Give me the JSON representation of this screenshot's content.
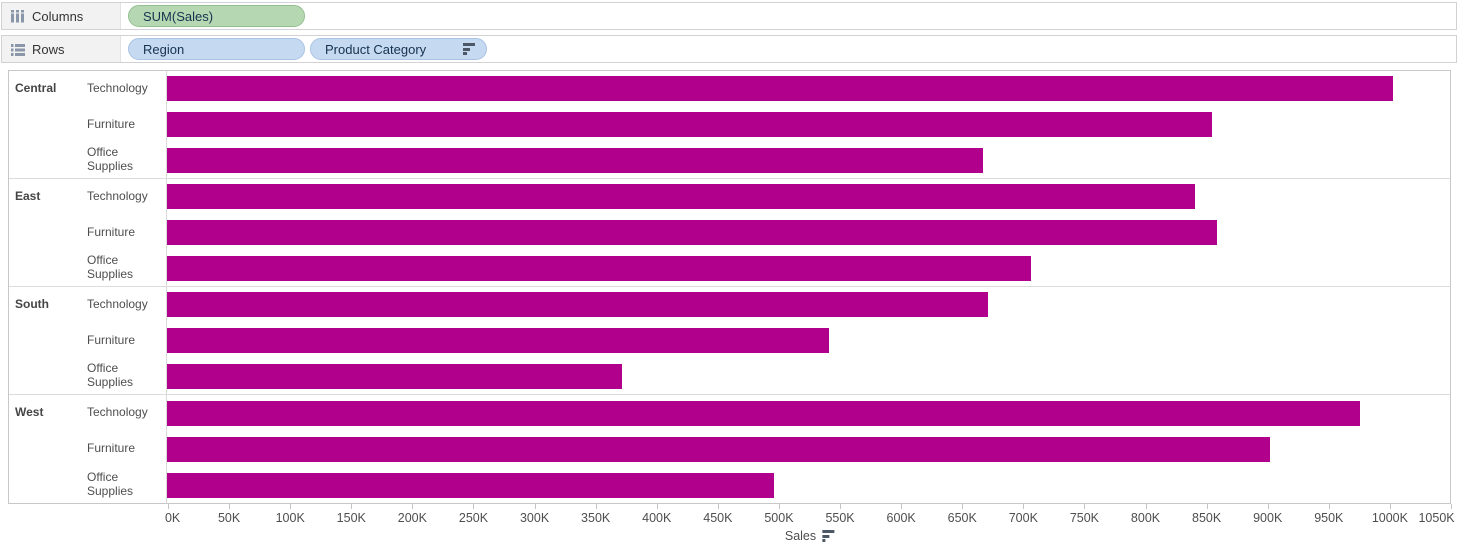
{
  "shelves": {
    "columns": {
      "label": "Columns",
      "pills": [
        {
          "text": "SUM(Sales)",
          "kind": "measure",
          "sorted": false
        }
      ]
    },
    "rows": {
      "label": "Rows",
      "pills": [
        {
          "text": "Region",
          "kind": "dimension",
          "sorted": false
        },
        {
          "text": "Product Category",
          "kind": "dimension",
          "sorted": true
        }
      ]
    }
  },
  "chart_data": {
    "type": "bar",
    "orientation": "horizontal",
    "title": "",
    "xlabel": "Sales",
    "xlabel_sort_icon": true,
    "x_axis": {
      "min": 0,
      "max": 1050,
      "unit": "K",
      "tick_step": 50,
      "tick_labels": [
        "0K",
        "50K",
        "100K",
        "150K",
        "200K",
        "250K",
        "300K",
        "350K",
        "400K",
        "450K",
        "500K",
        "550K",
        "600K",
        "650K",
        "700K",
        "750K",
        "800K",
        "850K",
        "900K",
        "950K",
        "1000K",
        "1050K"
      ]
    },
    "row_groups": [
      {
        "region": "Central",
        "categories": [
          "Technology",
          "Furniture",
          "Office Supplies"
        ],
        "values_k": [
          1003,
          855,
          668
        ]
      },
      {
        "region": "East",
        "categories": [
          "Technology",
          "Furniture",
          "Office Supplies"
        ],
        "values_k": [
          841,
          859,
          707
        ]
      },
      {
        "region": "South",
        "categories": [
          "Technology",
          "Furniture",
          "Office Supplies"
        ],
        "values_k": [
          672,
          542,
          372
        ]
      },
      {
        "region": "West",
        "categories": [
          "Technology",
          "Furniture",
          "Office Supplies"
        ],
        "values_k": [
          976,
          903,
          497
        ]
      }
    ],
    "legend": "none",
    "grid": "off"
  },
  "colors": {
    "bar": "#b0008c",
    "measure_pill_bg": "#b5d8b3",
    "measure_pill_border": "#93bf91",
    "dimension_pill_bg": "#c5d9f1",
    "dimension_pill_border": "#a9c3e4"
  }
}
